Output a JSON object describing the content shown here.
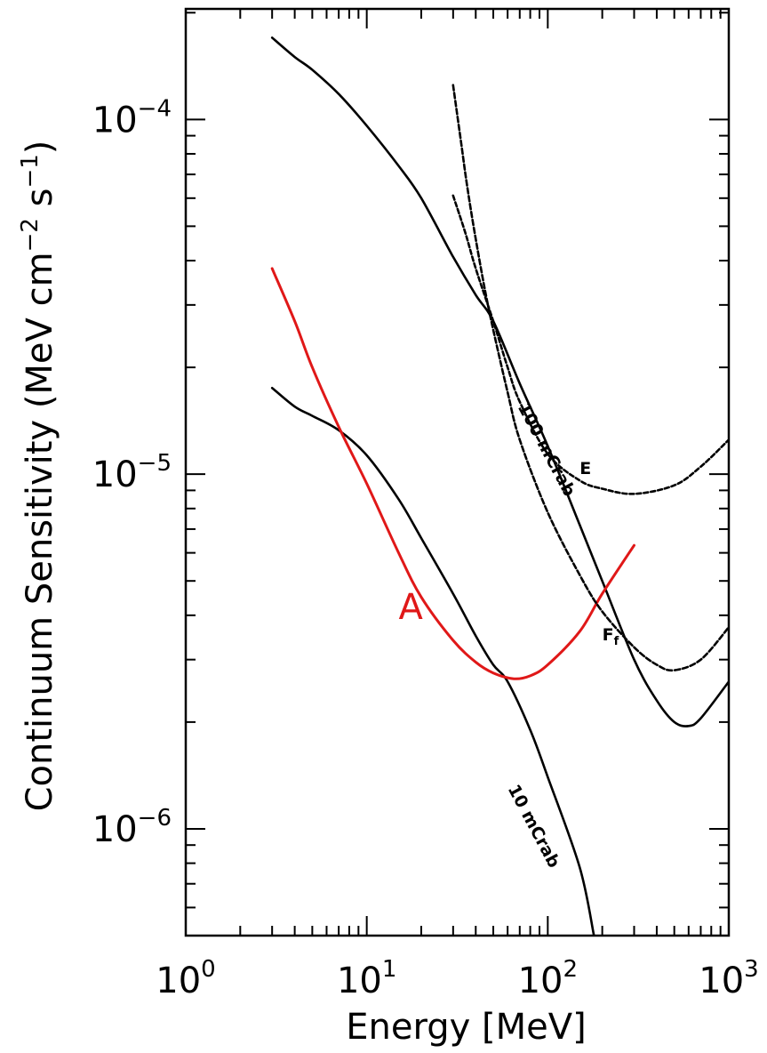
{
  "chart_data": {
    "type": "line",
    "xlabel": "Energy [MeV]",
    "ylabel_parts": [
      "Continuum Sensitivity (MeV cm",
      "−2",
      " s",
      "−1",
      ")"
    ],
    "x_scale": "log",
    "y_scale": "log",
    "xlim": [
      1,
      1000
    ],
    "ylim": [
      5e-07,
      0.000205
    ],
    "x_ticks": [
      {
        "value": 1,
        "base": "10",
        "exp": "0"
      },
      {
        "value": 10,
        "base": "10",
        "exp": "1"
      },
      {
        "value": 100,
        "base": "10",
        "exp": "2"
      },
      {
        "value": 1000,
        "base": "10",
        "exp": "3"
      }
    ],
    "y_ticks": [
      {
        "value": 1e-06,
        "base": "10",
        "exp": "−6"
      },
      {
        "value": 1e-05,
        "base": "10",
        "exp": "−5"
      },
      {
        "value": 0.0001,
        "base": "10",
        "exp": "−4"
      }
    ],
    "grid": false,
    "series": [
      {
        "key": "upper_solid",
        "color": "#000000",
        "dash": "solid",
        "points": [
          [
            3,
            0.00017
          ],
          [
            4,
            0.00015
          ],
          [
            5,
            0.000138
          ],
          [
            7,
            0.000118
          ],
          [
            10,
            9.6e-05
          ],
          [
            15,
            7.4e-05
          ],
          [
            20,
            6e-05
          ],
          [
            30,
            4.1e-05
          ],
          [
            40,
            3.2e-05
          ],
          [
            50,
            2.7e-05
          ],
          [
            70,
            1.8e-05
          ],
          [
            100,
            1.2e-05
          ],
          [
            150,
            7.2e-06
          ],
          [
            200,
            5e-06
          ],
          [
            300,
            3e-06
          ],
          [
            400,
            2.3e-06
          ],
          [
            500,
            2e-06
          ],
          [
            600,
            1.95e-06
          ],
          [
            700,
            2.05e-06
          ],
          [
            1000,
            2.6e-06
          ]
        ]
      },
      {
        "key": "lower_solid",
        "color": "#000000",
        "dash": "solid",
        "points": [
          [
            3,
            1.75e-05
          ],
          [
            4,
            1.55e-05
          ],
          [
            5,
            1.46e-05
          ],
          [
            7,
            1.33e-05
          ],
          [
            10,
            1.13e-05
          ],
          [
            15,
            8.5e-06
          ],
          [
            20,
            6.6e-06
          ],
          [
            30,
            4.6e-06
          ],
          [
            40,
            3.5e-06
          ],
          [
            50,
            2.9e-06
          ],
          [
            60,
            2.6e-06
          ],
          [
            80,
            1.9e-06
          ],
          [
            100,
            1.4e-06
          ],
          [
            150,
            7.8e-07
          ],
          [
            180,
            5e-07
          ]
        ]
      },
      {
        "key": "A",
        "name": "A",
        "color": "#e01818",
        "dash": "solid",
        "points": [
          [
            3,
            3.8e-05
          ],
          [
            4,
            2.7e-05
          ],
          [
            5,
            2e-05
          ],
          [
            7,
            1.36e-05
          ],
          [
            10,
            9.4e-06
          ],
          [
            15,
            6e-06
          ],
          [
            20,
            4.5e-06
          ],
          [
            30,
            3.4e-06
          ],
          [
            40,
            2.95e-06
          ],
          [
            50,
            2.75e-06
          ],
          [
            65,
            2.65e-06
          ],
          [
            80,
            2.7e-06
          ],
          [
            100,
            2.9e-06
          ],
          [
            150,
            3.6e-06
          ],
          [
            200,
            4.6e-06
          ],
          [
            300,
            6.3e-06
          ]
        ]
      },
      {
        "key": "E",
        "name": "E",
        "color": "#000000",
        "dash": "5 3",
        "points": [
          [
            30,
            6.1e-05
          ],
          [
            35,
            4.8e-05
          ],
          [
            40,
            3.8e-05
          ],
          [
            50,
            2.7e-05
          ],
          [
            60,
            2e-05
          ],
          [
            70,
            1.6e-05
          ],
          [
            100,
            1.14e-05
          ],
          [
            150,
            9.6e-06
          ],
          [
            200,
            9.1e-06
          ],
          [
            300,
            8.8e-06
          ],
          [
            500,
            9.3e-06
          ],
          [
            700,
            1.05e-05
          ],
          [
            1000,
            1.25e-05
          ]
        ]
      },
      {
        "key": "Ff",
        "name": "F",
        "name_sub": "f",
        "color": "#000000",
        "dash": "6 3",
        "points": [
          [
            30,
            0.000125
          ],
          [
            33,
            8.8e-05
          ],
          [
            36,
            6.4e-05
          ],
          [
            40,
            4.6e-05
          ],
          [
            45,
            3.3e-05
          ],
          [
            50,
            2.55e-05
          ],
          [
            60,
            1.7e-05
          ],
          [
            70,
            1.25e-05
          ],
          [
            100,
            7.8e-06
          ],
          [
            150,
            5.2e-06
          ],
          [
            200,
            4.1e-06
          ],
          [
            300,
            3.25e-06
          ],
          [
            400,
            2.9e-06
          ],
          [
            500,
            2.8e-06
          ],
          [
            700,
            3e-06
          ],
          [
            1000,
            3.7e-06
          ]
        ]
      }
    ],
    "annotations": [
      {
        "text": "100 mCrab",
        "kind": "curve-label"
      },
      {
        "text": "10 mCrab",
        "kind": "curve-label"
      },
      {
        "text": "E",
        "kind": "letter"
      },
      {
        "text": "F",
        "sub": "f",
        "kind": "letter"
      },
      {
        "text": "A",
        "kind": "red-letter"
      }
    ]
  }
}
